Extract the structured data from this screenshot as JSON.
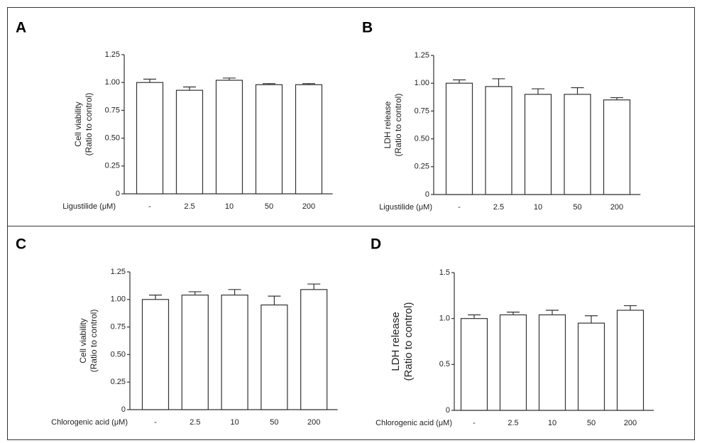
{
  "chart_data": [
    {
      "type": "bar",
      "panel_label": "A",
      "ylabel": [
        "Cell viability",
        "(Ratio to control)"
      ],
      "xlabel": "Ligustilide (μM)",
      "categories": [
        "-",
        "2.5",
        "10",
        "50",
        "200"
      ],
      "values": [
        1.0,
        0.93,
        1.02,
        0.98,
        0.98
      ],
      "errors": [
        0.03,
        0.03,
        0.02,
        0.01,
        0.01
      ],
      "color": "#ffffff",
      "ylim": [
        0,
        1.25
      ],
      "yticks": [
        0,
        0.25,
        {
          "value": 0.5,
          "label": "0.50"
        },
        0.75,
        {
          "value": 1,
          "label": "1.00"
        },
        1.25
      ]
    },
    {
      "type": "bar",
      "panel_label": "B",
      "ylabel": [
        "LDH release",
        "(Ratio to control)"
      ],
      "xlabel": "Ligustilide (μM)",
      "categories": [
        "-",
        "2.5",
        "10",
        "50",
        "200"
      ],
      "values": [
        1.0,
        0.97,
        0.9,
        0.9,
        0.85
      ],
      "errors": [
        0.03,
        0.07,
        0.05,
        0.06,
        0.02
      ],
      "color": "#ffffff",
      "ylim": [
        0,
        1.25
      ],
      "yticks": [
        0,
        0.25,
        {
          "value": 0.5,
          "label": "0.50"
        },
        0.75,
        {
          "value": 1,
          "label": "1.00"
        },
        1.25
      ]
    },
    {
      "type": "bar",
      "panel_label": "C",
      "ylabel": [
        "Cell viability",
        "(Ratio to control)"
      ],
      "xlabel": "Chlorogenic acid (μM)",
      "categories": [
        "-",
        "2.5",
        "10",
        "50",
        "200"
      ],
      "values": [
        1.0,
        1.04,
        1.04,
        0.95,
        1.09
      ],
      "errors": [
        0.04,
        0.03,
        0.05,
        0.08,
        0.05
      ],
      "color": "#ffffff",
      "ylim": [
        0,
        1.25
      ],
      "yticks": [
        0,
        0.25,
        {
          "value": 0.5,
          "label": "0.50"
        },
        0.75,
        {
          "value": 1,
          "label": "1.00"
        },
        1.25
      ]
    },
    {
      "type": "bar",
      "panel_label": "D",
      "ylabel": [
        "LDH release",
        "(Ratio to control)"
      ],
      "xlabel": "Chlorogenic acid (μM)",
      "categories": [
        "-",
        "2.5",
        "10",
        "50",
        "200"
      ],
      "values": [
        1.0,
        1.04,
        1.04,
        0.95,
        1.09
      ],
      "errors": [
        0.04,
        0.03,
        0.05,
        0.08,
        0.05
      ],
      "color": "#ffffff",
      "ylim": [
        0,
        1.5
      ],
      "yticks": [
        0,
        0.5,
        {
          "value": 1,
          "label": "1.0"
        },
        1.5
      ]
    }
  ]
}
